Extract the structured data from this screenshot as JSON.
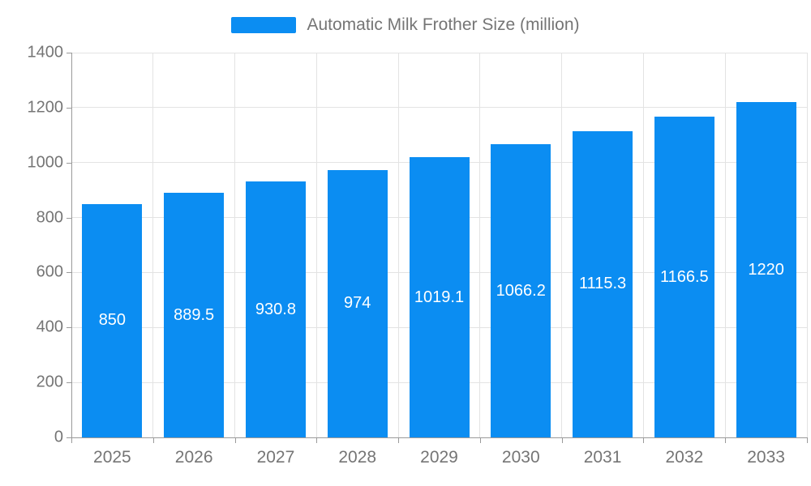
{
  "legend": {
    "label": "Automatic Milk Frother Size (million)"
  },
  "colors": {
    "bar": "#0b8df2",
    "grid": "#e3e3e3",
    "axis": "#9a9a9a",
    "tick_text": "#757575",
    "bar_label_text": "#ffffff",
    "background": "#ffffff"
  },
  "chart_data": {
    "type": "bar",
    "title": "",
    "categories": [
      "2025",
      "2026",
      "2027",
      "2028",
      "2029",
      "2030",
      "2031",
      "2032",
      "2033"
    ],
    "values": [
      850,
      889.5,
      930.8,
      974,
      1019.1,
      1066.2,
      1115.3,
      1166.5,
      1220
    ],
    "series_name": "Automatic Milk Frother Size (million)",
    "xlabel": "",
    "ylabel": "",
    "ylim": [
      0,
      1400
    ],
    "ytick_interval": 200,
    "ytick_labels": [
      "0",
      "200",
      "400",
      "600",
      "800",
      "1000",
      "1200",
      "1400"
    ],
    "grid": true,
    "legend_position": "top",
    "value_labels": "inside-center"
  }
}
